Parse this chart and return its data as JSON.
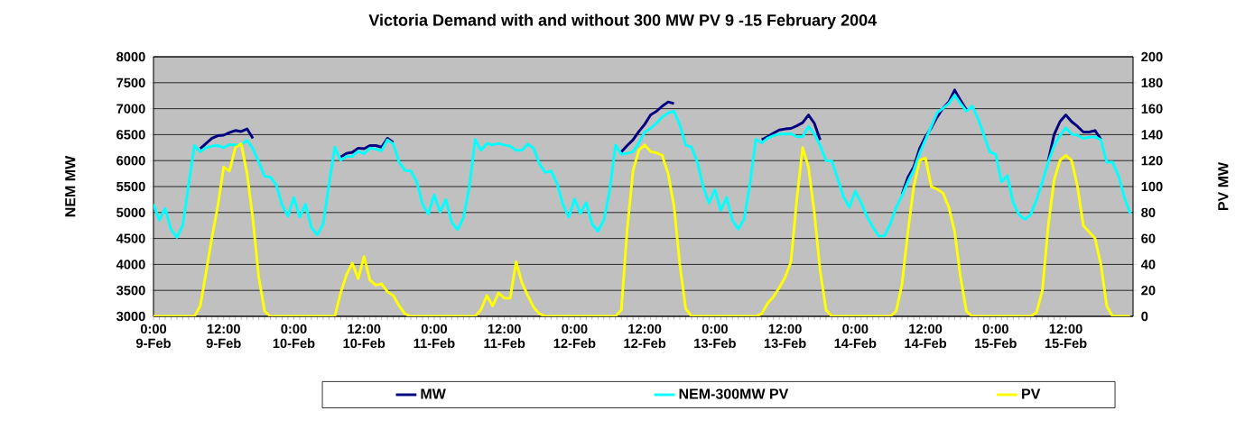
{
  "chart_data": {
    "type": "line",
    "title": "Victoria Demand with and without 300 MW PV 9 -15 February 2004",
    "ylabel": "NEM MW",
    "y2label": "PV MW",
    "categories": [
      "0:00 9-Feb",
      null,
      null,
      null,
      null,
      null,
      null,
      null,
      null,
      null,
      null,
      null,
      "12:00 9-Feb",
      null,
      null,
      null,
      null,
      null,
      null,
      null,
      null,
      null,
      null,
      null,
      "0:00 10-Feb",
      null,
      null,
      null,
      null,
      null,
      null,
      null,
      null,
      null,
      null,
      null,
      "12:00 10-Feb",
      null,
      null,
      null,
      null,
      null,
      null,
      null,
      null,
      null,
      null,
      null,
      "0:00 11-Feb",
      null,
      null,
      null,
      null,
      null,
      null,
      null,
      null,
      null,
      null,
      null,
      "12:00 11-Feb",
      null,
      null,
      null,
      null,
      null,
      null,
      null,
      null,
      null,
      null,
      null,
      "0:00 12-Feb",
      null,
      null,
      null,
      null,
      null,
      null,
      null,
      null,
      null,
      null,
      null,
      "12:00 12-Feb",
      null,
      null,
      null,
      null,
      null,
      null,
      null,
      null,
      null,
      null,
      null,
      "0:00 13-Feb",
      null,
      null,
      null,
      null,
      null,
      null,
      null,
      null,
      null,
      null,
      null,
      "12:00 13-Feb",
      null,
      null,
      null,
      null,
      null,
      null,
      null,
      null,
      null,
      null,
      null,
      "0:00 14-Feb",
      null,
      null,
      null,
      null,
      null,
      null,
      null,
      null,
      null,
      null,
      null,
      "12:00 14-Feb",
      null,
      null,
      null,
      null,
      null,
      null,
      null,
      null,
      null,
      null,
      null,
      "0:00 15-Feb",
      null,
      null,
      null,
      null,
      null,
      null,
      null,
      null,
      null,
      null,
      null,
      "12:00 15-Feb",
      null,
      null,
      null,
      null,
      null,
      null,
      null,
      null,
      null,
      null,
      null
    ],
    "series": [
      {
        "name": "MW",
        "color": "#000080",
        "values": [
          null,
          null,
          null,
          null,
          null,
          null,
          null,
          null,
          6230,
          6330,
          6430,
          6480,
          6490,
          6540,
          6580,
          6560,
          6610,
          6430,
          null,
          null,
          null,
          null,
          null,
          null,
          null,
          null,
          null,
          null,
          null,
          null,
          null,
          null,
          6070,
          6140,
          6160,
          6240,
          6230,
          6290,
          6290,
          6260,
          6430,
          6350,
          null,
          null,
          null,
          null,
          null,
          null,
          null,
          null,
          null,
          null,
          null,
          null,
          null,
          null,
          null,
          null,
          null,
          null,
          null,
          null,
          null,
          null,
          null,
          null,
          null,
          null,
          null,
          null,
          null,
          null,
          null,
          null,
          null,
          null,
          null,
          null,
          null,
          null,
          6170,
          6290,
          6400,
          6560,
          6700,
          6880,
          6950,
          7050,
          7130,
          7100,
          null,
          null,
          null,
          null,
          null,
          null,
          null,
          null,
          null,
          null,
          null,
          null,
          null,
          null,
          6400,
          6460,
          6530,
          6590,
          6610,
          6620,
          6670,
          6730,
          6880,
          6720,
          6400,
          null,
          null,
          null,
          null,
          null,
          null,
          null,
          null,
          null,
          null,
          null,
          null,
          null,
          5350,
          5680,
          5880,
          6230,
          6460,
          6630,
          6840,
          7010,
          7130,
          7360,
          7160,
          6980,
          null,
          null,
          null,
          null,
          null,
          null,
          null,
          null,
          null,
          null,
          null,
          null,
          null,
          6000,
          6500,
          6750,
          6880,
          6750,
          6660,
          6550,
          6550,
          6580,
          6410,
          null,
          null,
          null,
          null,
          null
        ]
      },
      {
        "name": "NEM-300MW PV",
        "color": "#00ffff",
        "values": [
          5160,
          4850,
          5080,
          4670,
          4520,
          4750,
          5530,
          6290,
          6170,
          6250,
          6280,
          6290,
          6250,
          6310,
          6300,
          6310,
          6390,
          6230,
          5970,
          5700,
          5680,
          5530,
          5140,
          4930,
          5290,
          4910,
          5160,
          4710,
          4570,
          4770,
          5530,
          6260,
          6010,
          6080,
          6080,
          6180,
          6130,
          6240,
          6220,
          6190,
          6400,
          6320,
          5970,
          5810,
          5800,
          5600,
          5160,
          4970,
          5340,
          5010,
          5250,
          4810,
          4670,
          4900,
          5490,
          6410,
          6200,
          6330,
          6300,
          6330,
          6300,
          6280,
          6200,
          6200,
          6320,
          6240,
          5940,
          5770,
          5800,
          5560,
          5160,
          4910,
          5260,
          4980,
          5190,
          4780,
          4640,
          4850,
          5420,
          6300,
          6120,
          6140,
          6170,
          6340,
          6550,
          6620,
          6720,
          6840,
          6920,
          6950,
          6690,
          6300,
          6260,
          5970,
          5490,
          5180,
          5440,
          5040,
          5290,
          4850,
          4680,
          4870,
          5560,
          6410,
          6340,
          6430,
          6480,
          6510,
          6510,
          6520,
          6460,
          6460,
          6660,
          6510,
          6290,
          6000,
          5990,
          5650,
          5300,
          5100,
          5410,
          5190,
          4930,
          4720,
          4550,
          4550,
          4780,
          5100,
          5330,
          5590,
          5820,
          6140,
          6400,
          6660,
          6920,
          7010,
          7100,
          7260,
          7100,
          6950,
          7050,
          6810,
          6490,
          6170,
          6120,
          5590,
          5710,
          5190,
          4960,
          4870,
          4960,
          5250,
          5590,
          5970,
          6290,
          6480,
          6630,
          6510,
          6490,
          6430,
          6450,
          6460,
          6400,
          5970,
          5970,
          5710,
          5300,
          4980
        ]
      },
      {
        "name": "PV",
        "color": "#ffff00",
        "axis": "y2",
        "values": [
          0,
          0,
          0,
          0,
          0,
          0,
          0,
          0,
          8,
          34,
          61,
          85,
          115,
          112,
          130,
          133,
          110,
          75,
          30,
          4,
          0,
          0,
          0,
          0,
          0,
          0,
          0,
          0,
          0,
          0,
          0,
          0,
          18,
          32,
          41,
          29,
          46,
          28,
          24,
          25,
          19,
          16,
          8,
          2,
          0,
          0,
          0,
          0,
          0,
          0,
          0,
          0,
          0,
          0,
          0,
          0,
          5,
          16,
          8,
          18,
          14,
          14,
          42,
          26,
          16,
          7,
          2,
          0,
          0,
          0,
          0,
          0,
          0,
          0,
          0,
          0,
          0,
          0,
          0,
          0,
          5,
          67,
          112,
          128,
          132,
          127,
          126,
          124,
          110,
          85,
          40,
          6,
          0,
          0,
          0,
          0,
          0,
          0,
          0,
          0,
          0,
          0,
          0,
          0,
          2,
          10,
          15,
          22,
          30,
          42,
          90,
          130,
          115,
          80,
          35,
          5,
          0,
          0,
          0,
          0,
          0,
          0,
          0,
          0,
          0,
          0,
          0,
          4,
          25,
          65,
          100,
          120,
          122,
          100,
          98,
          95,
          84,
          65,
          30,
          4,
          0,
          0,
          0,
          0,
          0,
          0,
          0,
          0,
          0,
          0,
          0,
          3,
          20,
          70,
          105,
          120,
          124,
          120,
          100,
          70,
          65,
          60,
          40,
          8,
          0,
          0,
          0,
          0
        ]
      }
    ],
    "ylim": [
      3000,
      8000
    ],
    "yticks": [
      3000,
      3500,
      4000,
      4500,
      5000,
      5500,
      6000,
      6500,
      7000,
      7500,
      8000
    ],
    "y2lim": [
      0,
      200
    ],
    "y2ticks": [
      0,
      20,
      40,
      60,
      80,
      100,
      120,
      140,
      160,
      180,
      200
    ],
    "grid": "y",
    "legend": "bottom"
  }
}
